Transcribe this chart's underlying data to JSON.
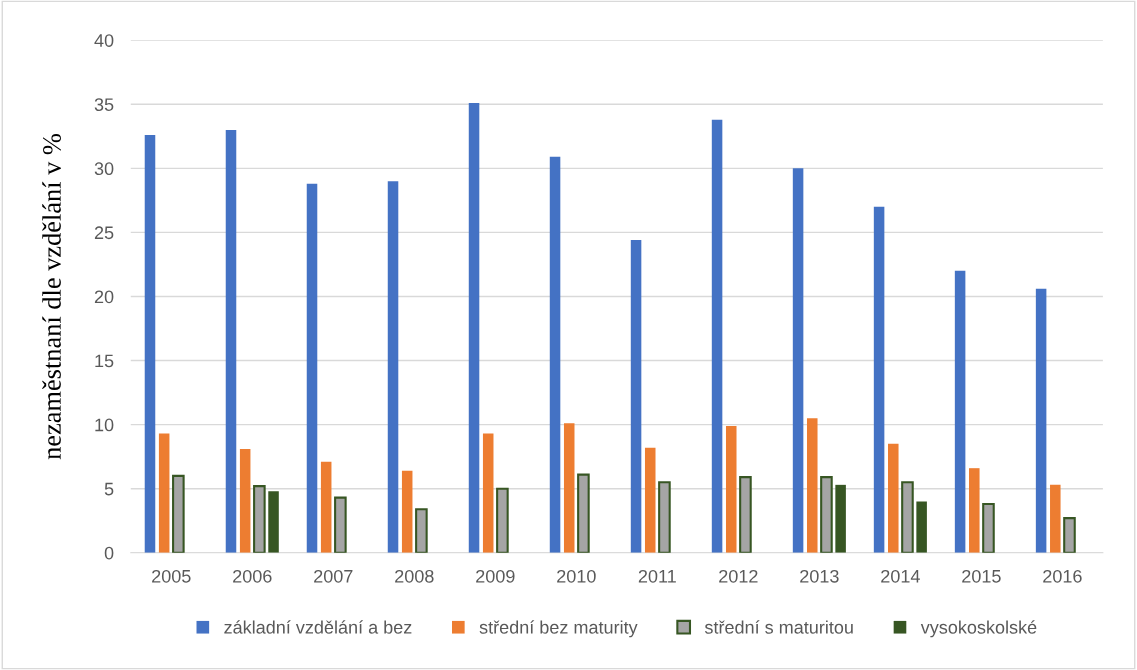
{
  "chart_data": {
    "type": "bar",
    "ylabel": "nezaměstnaní dle vzdělání v %",
    "categories": [
      "2005",
      "2006",
      "2007",
      "2008",
      "2009",
      "2010",
      "2011",
      "2012",
      "2013",
      "2014",
      "2015",
      "2016"
    ],
    "series": [
      {
        "name": "základní vzdělání a bez",
        "color": "#4472c4",
        "values": [
          32.6,
          33.0,
          28.8,
          29.0,
          35.1,
          30.9,
          24.4,
          33.8,
          30.0,
          27.0,
          22.0,
          20.6
        ]
      },
      {
        "name": "střední bez maturity",
        "color": "#ed7d31",
        "values": [
          9.3,
          8.1,
          7.1,
          6.4,
          9.3,
          10.1,
          8.2,
          9.9,
          10.5,
          8.5,
          6.6,
          5.3
        ]
      },
      {
        "name": "střední s maturitou",
        "color": "#a5a5a5",
        "values": [
          6.0,
          5.2,
          4.3,
          3.4,
          5.0,
          6.1,
          5.5,
          5.9,
          5.9,
          5.5,
          3.8,
          2.7
        ]
      },
      {
        "name": "vysokoskolské",
        "color": "#375623",
        "values": [
          null,
          4.8,
          null,
          null,
          null,
          null,
          null,
          null,
          5.3,
          4.0,
          null,
          null
        ]
      }
    ],
    "ylim": [
      0,
      40
    ],
    "yticks": [
      0,
      5,
      10,
      15,
      20,
      25,
      30,
      35,
      40
    ],
    "grid": "y",
    "legend": "bottom"
  }
}
